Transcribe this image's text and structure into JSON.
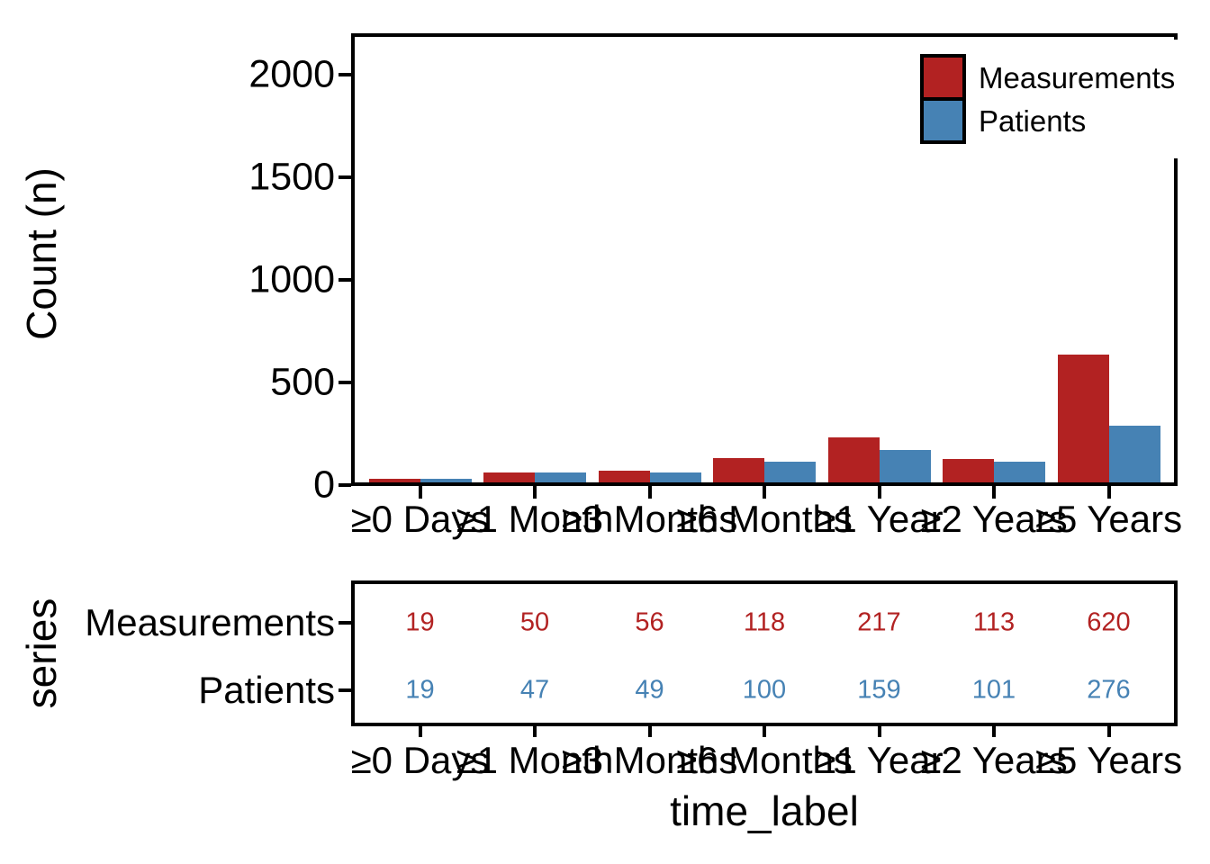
{
  "figure": {
    "background": "#ffffff",
    "axis_color": "#000000"
  },
  "chart_data": {
    "type": "bar",
    "title": "",
    "categories": [
      "≥0 Days",
      "≥1 Month",
      "≥3 Months",
      "≥6 Months",
      "≥1 Year",
      "≥2 Years",
      "≥5 Years"
    ],
    "series": [
      {
        "name": "Measurements",
        "color": "#B22222",
        "values": [
          19,
          50,
          56,
          118,
          217,
          113,
          620
        ]
      },
      {
        "name": "Patients",
        "color": "#4682B4",
        "values": [
          19,
          47,
          49,
          100,
          159,
          101,
          276
        ]
      }
    ],
    "xlabel": "time_label",
    "ylabel": "Count (n)",
    "ylim": [
      0,
      2200
    ],
    "yticks": [
      0,
      500,
      1000,
      1500,
      2000
    ],
    "grid": false,
    "legend_position": "inside-top-right",
    "bar_layout": "dodged"
  },
  "table_panel": {
    "type": "table",
    "ylabel": "series",
    "rows": [
      {
        "label": "Measurements",
        "color": "#B22222",
        "values": [
          19,
          50,
          56,
          118,
          217,
          113,
          620
        ]
      },
      {
        "label": "Patients",
        "color": "#4682B4",
        "values": [
          19,
          47,
          49,
          100,
          159,
          101,
          276
        ]
      }
    ]
  }
}
